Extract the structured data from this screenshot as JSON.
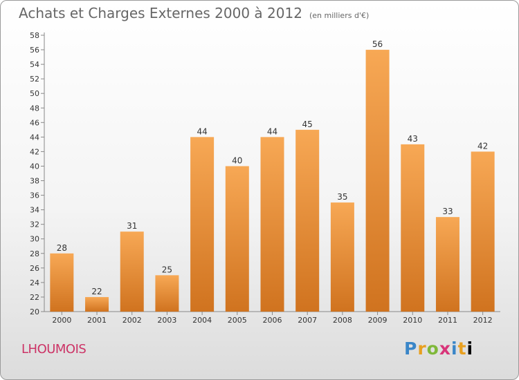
{
  "header": {
    "title": "Achats et Charges Externes 2000 à 2012",
    "unit": "(en milliers d'€)"
  },
  "footer": {
    "commune": "LHOUMOIS",
    "logo": [
      "P",
      "r",
      "o",
      "x",
      "i",
      "t",
      "i"
    ]
  },
  "colors": {
    "bar_light": "#f7a855",
    "bar_dark": "#d0731f",
    "commune": "#cc3366"
  },
  "chart_data": {
    "type": "bar",
    "title": "Achats et Charges Externes 2000 à 2012",
    "subtitle": "(en milliers d'€)",
    "xlabel": "",
    "ylabel": "",
    "categories": [
      "2000",
      "2001",
      "2002",
      "2003",
      "2004",
      "2005",
      "2006",
      "2007",
      "2008",
      "2009",
      "2010",
      "2011",
      "2012"
    ],
    "values": [
      28,
      22,
      31,
      25,
      44,
      40,
      44,
      45,
      35,
      56,
      43,
      33,
      42
    ],
    "ylim": [
      20,
      58
    ],
    "ytick_step": 2,
    "grid": false,
    "legend": "none"
  }
}
